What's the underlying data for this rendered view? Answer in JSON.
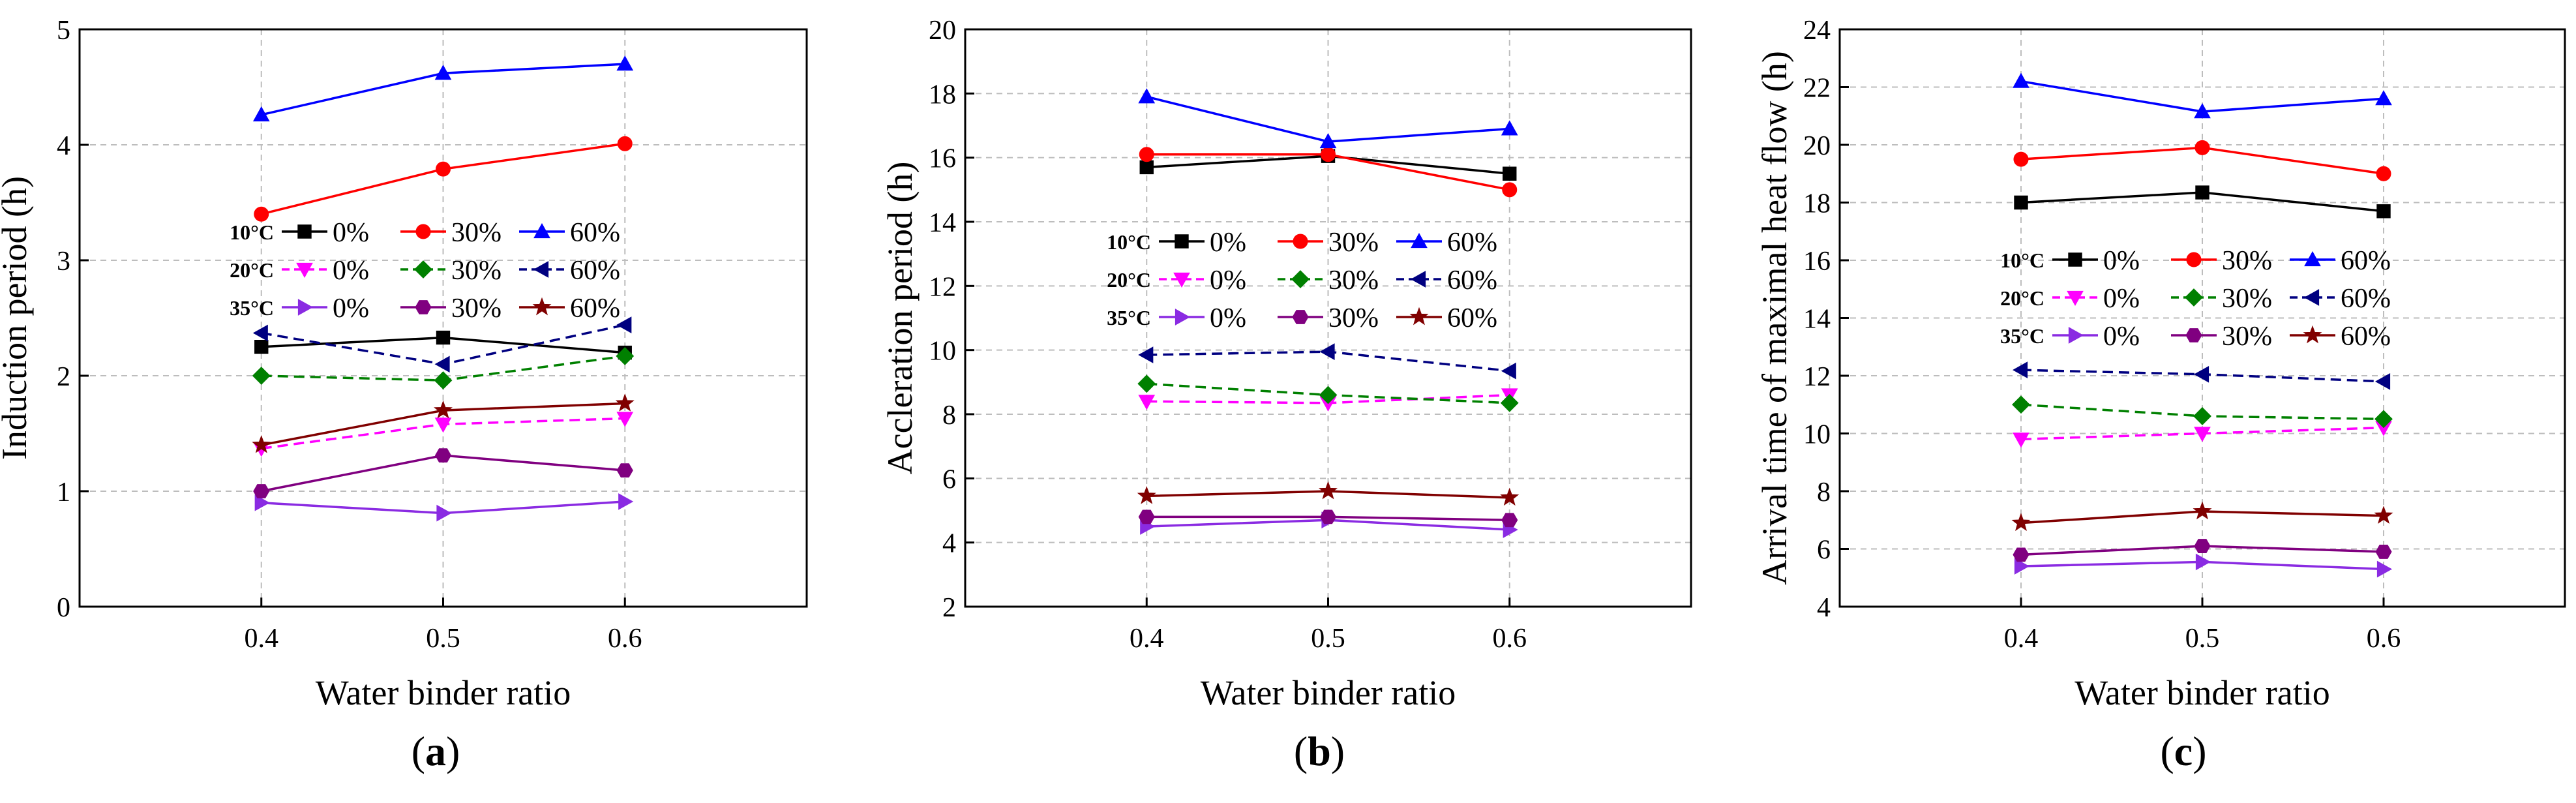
{
  "figure": {
    "panel_labels": [
      "a",
      "b",
      "c"
    ]
  },
  "legend": {
    "temperatures": [
      "10°C",
      "20°C",
      "35°C"
    ],
    "dosages": [
      "0%",
      "30%",
      "60%"
    ]
  },
  "styles": {
    "colors": {
      "10°C": [
        "#000000",
        "#ff0000",
        "#0000ff"
      ],
      "20°C": [
        "#ff00ff",
        "#008000",
        "#000080"
      ],
      "35°C": [
        "#8a2be2",
        "#800080",
        "#800000"
      ]
    },
    "markers": {
      "10°C": [
        "square",
        "circle",
        "triangle-up"
      ],
      "20°C": [
        "triangle-down",
        "diamond",
        "triangle-left"
      ],
      "35°C": [
        "triangle-right",
        "hexagon",
        "star"
      ]
    },
    "dash": {
      "10°C": "solid",
      "20°C": "dashed",
      "35°C": "solid"
    }
  },
  "chart_data": [
    {
      "type": "line",
      "panel": "a",
      "ylabel": "Induction period (h)",
      "xlabel": "Water binder ratio",
      "x": [
        0.4,
        0.5,
        0.6
      ],
      "xticks": [
        "0.4",
        "0.5",
        "0.6"
      ],
      "xlim": [
        0.3,
        0.7
      ],
      "ylim": [
        0,
        5
      ],
      "yticks": [
        0,
        1,
        2,
        3,
        4,
        5
      ],
      "grid": true,
      "series": [
        {
          "name": "10°C 0%",
          "values": [
            2.25,
            2.33,
            2.2
          ]
        },
        {
          "name": "10°C 30%",
          "values": [
            3.4,
            3.79,
            4.01
          ]
        },
        {
          "name": "10°C 60%",
          "values": [
            4.26,
            4.62,
            4.7
          ]
        },
        {
          "name": "20°C 0%",
          "values": [
            1.37,
            1.58,
            1.63
          ]
        },
        {
          "name": "20°C 30%",
          "values": [
            2.0,
            1.96,
            2.17
          ]
        },
        {
          "name": "20°C 60%",
          "values": [
            2.37,
            2.1,
            2.44
          ]
        },
        {
          "name": "35°C 0%",
          "values": [
            0.9,
            0.81,
            0.91
          ]
        },
        {
          "name": "35°C 30%",
          "values": [
            1.0,
            1.31,
            1.18
          ]
        },
        {
          "name": "35°C 60%",
          "values": [
            1.4,
            1.7,
            1.76
          ]
        }
      ]
    },
    {
      "type": "line",
      "panel": "b",
      "ylabel": "Accleration period (h)",
      "xlabel": "Water binder ratio",
      "x": [
        0.4,
        0.5,
        0.6
      ],
      "xticks": [
        "0.4",
        "0.5",
        "0.6"
      ],
      "xlim": [
        0.3,
        0.7
      ],
      "ylim": [
        2,
        20
      ],
      "yticks": [
        2,
        4,
        6,
        8,
        10,
        12,
        14,
        16,
        18,
        20
      ],
      "grid": true,
      "series": [
        {
          "name": "10°C 0%",
          "values": [
            15.7,
            16.05,
            15.5
          ]
        },
        {
          "name": "10°C 30%",
          "values": [
            16.1,
            16.1,
            15.0
          ]
        },
        {
          "name": "10°C 60%",
          "values": [
            17.9,
            16.5,
            16.9
          ]
        },
        {
          "name": "20°C 0%",
          "values": [
            8.4,
            8.35,
            8.6
          ]
        },
        {
          "name": "20°C 30%",
          "values": [
            8.95,
            8.6,
            8.35
          ]
        },
        {
          "name": "20°C 60%",
          "values": [
            9.85,
            9.95,
            9.35
          ]
        },
        {
          "name": "35°C 0%",
          "values": [
            4.5,
            4.7,
            4.4
          ]
        },
        {
          "name": "35°C 30%",
          "values": [
            4.8,
            4.8,
            4.7
          ]
        },
        {
          "name": "35°C 60%",
          "values": [
            5.45,
            5.6,
            5.4
          ]
        }
      ]
    },
    {
      "type": "line",
      "panel": "c",
      "ylabel": "Arrival time of maximal heat flow (h)",
      "xlabel": "Water binder ratio",
      "x": [
        0.4,
        0.5,
        0.6
      ],
      "xticks": [
        "0.4",
        "0.5",
        "0.6"
      ],
      "xlim": [
        0.3,
        0.7
      ],
      "ylim": [
        4,
        24
      ],
      "yticks": [
        4,
        6,
        8,
        10,
        12,
        14,
        16,
        18,
        20,
        22,
        24
      ],
      "grid": true,
      "series": [
        {
          "name": "10°C 0%",
          "values": [
            18.0,
            18.35,
            17.7
          ]
        },
        {
          "name": "10°C 30%",
          "values": [
            19.5,
            19.9,
            19.0
          ]
        },
        {
          "name": "10°C 60%",
          "values": [
            22.2,
            21.15,
            21.6
          ]
        },
        {
          "name": "20°C 0%",
          "values": [
            9.8,
            10.0,
            10.2
          ]
        },
        {
          "name": "20°C 30%",
          "values": [
            11.0,
            10.6,
            10.5
          ]
        },
        {
          "name": "20°C 60%",
          "values": [
            12.2,
            12.05,
            11.8
          ]
        },
        {
          "name": "35°C 0%",
          "values": [
            5.4,
            5.55,
            5.3
          ]
        },
        {
          "name": "35°C 30%",
          "values": [
            5.8,
            6.1,
            5.9
          ]
        },
        {
          "name": "35°C 60%",
          "values": [
            6.9,
            7.3,
            7.15
          ]
        }
      ]
    }
  ]
}
